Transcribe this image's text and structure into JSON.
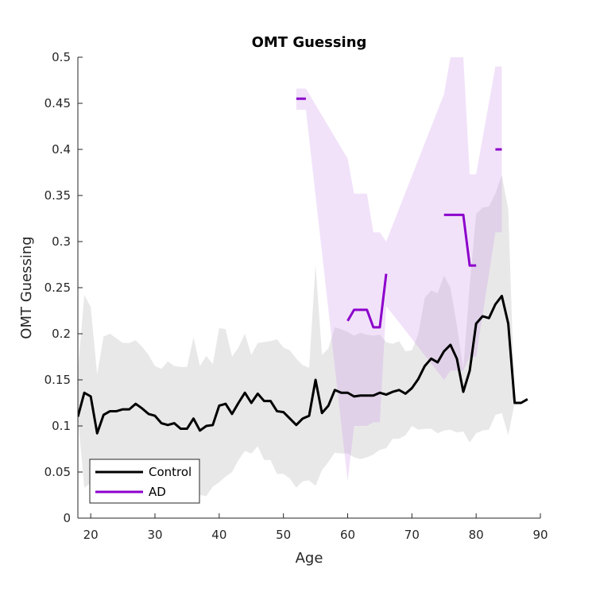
{
  "chart_data": {
    "type": "line",
    "title": "OMT Guessing",
    "xlabel": "Age",
    "ylabel": "OMT Guessing",
    "xlim": [
      18,
      90
    ],
    "ylim": [
      0,
      0.5
    ],
    "xticks": [
      20,
      30,
      40,
      50,
      60,
      70,
      80,
      90
    ],
    "xtick_labels": [
      "20",
      "30",
      "40",
      "50",
      "60",
      "70",
      "80",
      "90"
    ],
    "yticks": [
      0,
      0.05,
      0.1,
      0.15,
      0.2,
      0.25,
      0.3,
      0.35,
      0.4,
      0.45,
      0.5
    ],
    "ytick_labels": [
      "0",
      "0.05",
      "0.1",
      "0.15",
      "0.2",
      "0.25",
      "0.3",
      "0.35",
      "0.4",
      "0.45",
      "0.5"
    ],
    "grid": false,
    "legend_position": "bottom-left",
    "series": [
      {
        "name": "Control",
        "color": "#000000",
        "band_color": "#e6e6e6",
        "x": [
          18,
          19,
          20,
          21,
          22,
          23,
          24,
          25,
          26,
          27,
          28,
          29,
          30,
          31,
          32,
          33,
          34,
          35,
          36,
          37,
          38,
          39,
          40,
          41,
          42,
          43,
          44,
          45,
          46,
          47,
          48,
          49,
          50,
          51,
          52,
          53,
          54,
          55,
          56,
          57,
          58,
          59,
          60,
          61,
          62,
          63,
          64,
          65,
          66,
          67,
          68,
          69,
          70,
          71,
          72,
          73,
          74,
          75,
          76,
          77,
          78,
          79,
          80,
          81,
          82,
          83,
          84,
          85,
          86,
          87,
          88
        ],
        "y": [
          0.11,
          0.136,
          0.132,
          0.092,
          0.112,
          0.116,
          0.116,
          0.118,
          0.118,
          0.124,
          0.119,
          0.113,
          0.111,
          0.103,
          0.101,
          0.103,
          0.097,
          0.097,
          0.108,
          0.095,
          0.1,
          0.101,
          0.122,
          0.124,
          0.113,
          0.125,
          0.136,
          0.125,
          0.135,
          0.127,
          0.127,
          0.116,
          0.115,
          0.108,
          0.101,
          0.108,
          0.111,
          0.15,
          0.114,
          0.122,
          0.139,
          0.136,
          0.136,
          0.132,
          0.133,
          0.133,
          0.133,
          0.136,
          0.134,
          0.137,
          0.139,
          0.135,
          0.141,
          0.151,
          0.165,
          0.173,
          0.169,
          0.181,
          0.188,
          0.173,
          0.137,
          0.16,
          0.211,
          0.219,
          0.217,
          0.232,
          0.241,
          0.211,
          0.125,
          0.125,
          0.129
        ],
        "upper": [
          0.16,
          0.242,
          0.229,
          0.156,
          0.197,
          0.2,
          0.195,
          0.19,
          0.19,
          0.193,
          0.186,
          0.177,
          0.165,
          0.162,
          0.17,
          0.165,
          0.164,
          0.164,
          0.196,
          0.165,
          0.176,
          0.167,
          0.206,
          0.205,
          0.175,
          0.185,
          0.2,
          0.177,
          0.19,
          0.191,
          0.192,
          0.194,
          0.185,
          0.182,
          0.173,
          0.166,
          0.163,
          0.275,
          0.177,
          0.184,
          0.207,
          0.205,
          0.202,
          0.198,
          0.201,
          0.199,
          0.198,
          0.199,
          0.191,
          0.189,
          0.192,
          0.181,
          0.182,
          0.2,
          0.239,
          0.247,
          0.244,
          0.263,
          0.25,
          0.209,
          0.162,
          0.253,
          0.33,
          0.337,
          0.338,
          0.352,
          0.372,
          0.335,
          0.125,
          0.125,
          0.129
        ],
        "lower": [
          0.11,
          0.033,
          0.038,
          0.055,
          0.032,
          0.038,
          0.039,
          0.047,
          0.046,
          0.055,
          0.053,
          0.048,
          0.055,
          0.045,
          0.034,
          0.041,
          0.03,
          0.03,
          0.022,
          0.025,
          0.024,
          0.034,
          0.039,
          0.045,
          0.05,
          0.063,
          0.073,
          0.07,
          0.078,
          0.063,
          0.063,
          0.048,
          0.048,
          0.043,
          0.033,
          0.04,
          0.041,
          0.035,
          0.052,
          0.061,
          0.071,
          0.07,
          0.07,
          0.066,
          0.064,
          0.066,
          0.069,
          0.074,
          0.076,
          0.086,
          0.086,
          0.09,
          0.1,
          0.096,
          0.097,
          0.097,
          0.092,
          0.095,
          0.096,
          0.093,
          0.094,
          0.082,
          0.092,
          0.095,
          0.096,
          0.112,
          0.114,
          0.09,
          0.125,
          0.125,
          0.129
        ]
      },
      {
        "name": "AD",
        "color": "#8c00cc",
        "band_color": "#c68ce8",
        "segments": [
          {
            "x": [
              52,
              53.5
            ],
            "y": [
              0.455,
              0.455
            ],
            "upper": [
              0.466,
              0.466
            ],
            "lower": [
              0.443,
              0.443
            ]
          },
          {
            "x": [
              60,
              61,
              62,
              63,
              64,
              65,
              66
            ],
            "y": [
              0.214,
              0.226,
              0.226,
              0.226,
              0.207,
              0.207,
              0.265
            ],
            "upper": [
              0.39,
              0.352,
              0.352,
              0.352,
              0.31,
              0.31,
              0.3
            ],
            "lower": [
              0.04,
              0.1,
              0.1,
              0.1,
              0.104,
              0.104,
              0.23
            ]
          },
          {
            "x": [
              75,
              76,
              77,
              78,
              79,
              80
            ],
            "y": [
              0.329,
              0.329,
              0.329,
              0.329,
              0.274,
              0.274
            ],
            "upper": [
              0.46,
              0.5,
              0.5,
              0.5,
              0.373,
              0.373
            ],
            "lower": [
              0.15,
              0.16,
              0.16,
              0.16,
              0.175,
              0.175
            ]
          },
          {
            "x": [
              83,
              84
            ],
            "y": [
              0.4,
              0.4
            ],
            "upper": [
              0.49,
              0.49
            ],
            "lower": [
              0.31,
              0.31
            ]
          }
        ],
        "band_outline": {
          "x": [
            52,
            53.5,
            60,
            61,
            63,
            64,
            65,
            66,
            75,
            76,
            78,
            79,
            80,
            83,
            84,
            84,
            83,
            80,
            79,
            78,
            76,
            75,
            66,
            65,
            64,
            63,
            61,
            60,
            53.5,
            52
          ],
          "y": [
            0.466,
            0.466,
            0.39,
            0.352,
            0.352,
            0.31,
            0.31,
            0.3,
            0.46,
            0.5,
            0.5,
            0.373,
            0.373,
            0.49,
            0.49,
            0.31,
            0.31,
            0.175,
            0.175,
            0.16,
            0.16,
            0.15,
            0.23,
            0.104,
            0.104,
            0.1,
            0.1,
            0.04,
            0.443,
            0.443
          ]
        }
      }
    ]
  }
}
